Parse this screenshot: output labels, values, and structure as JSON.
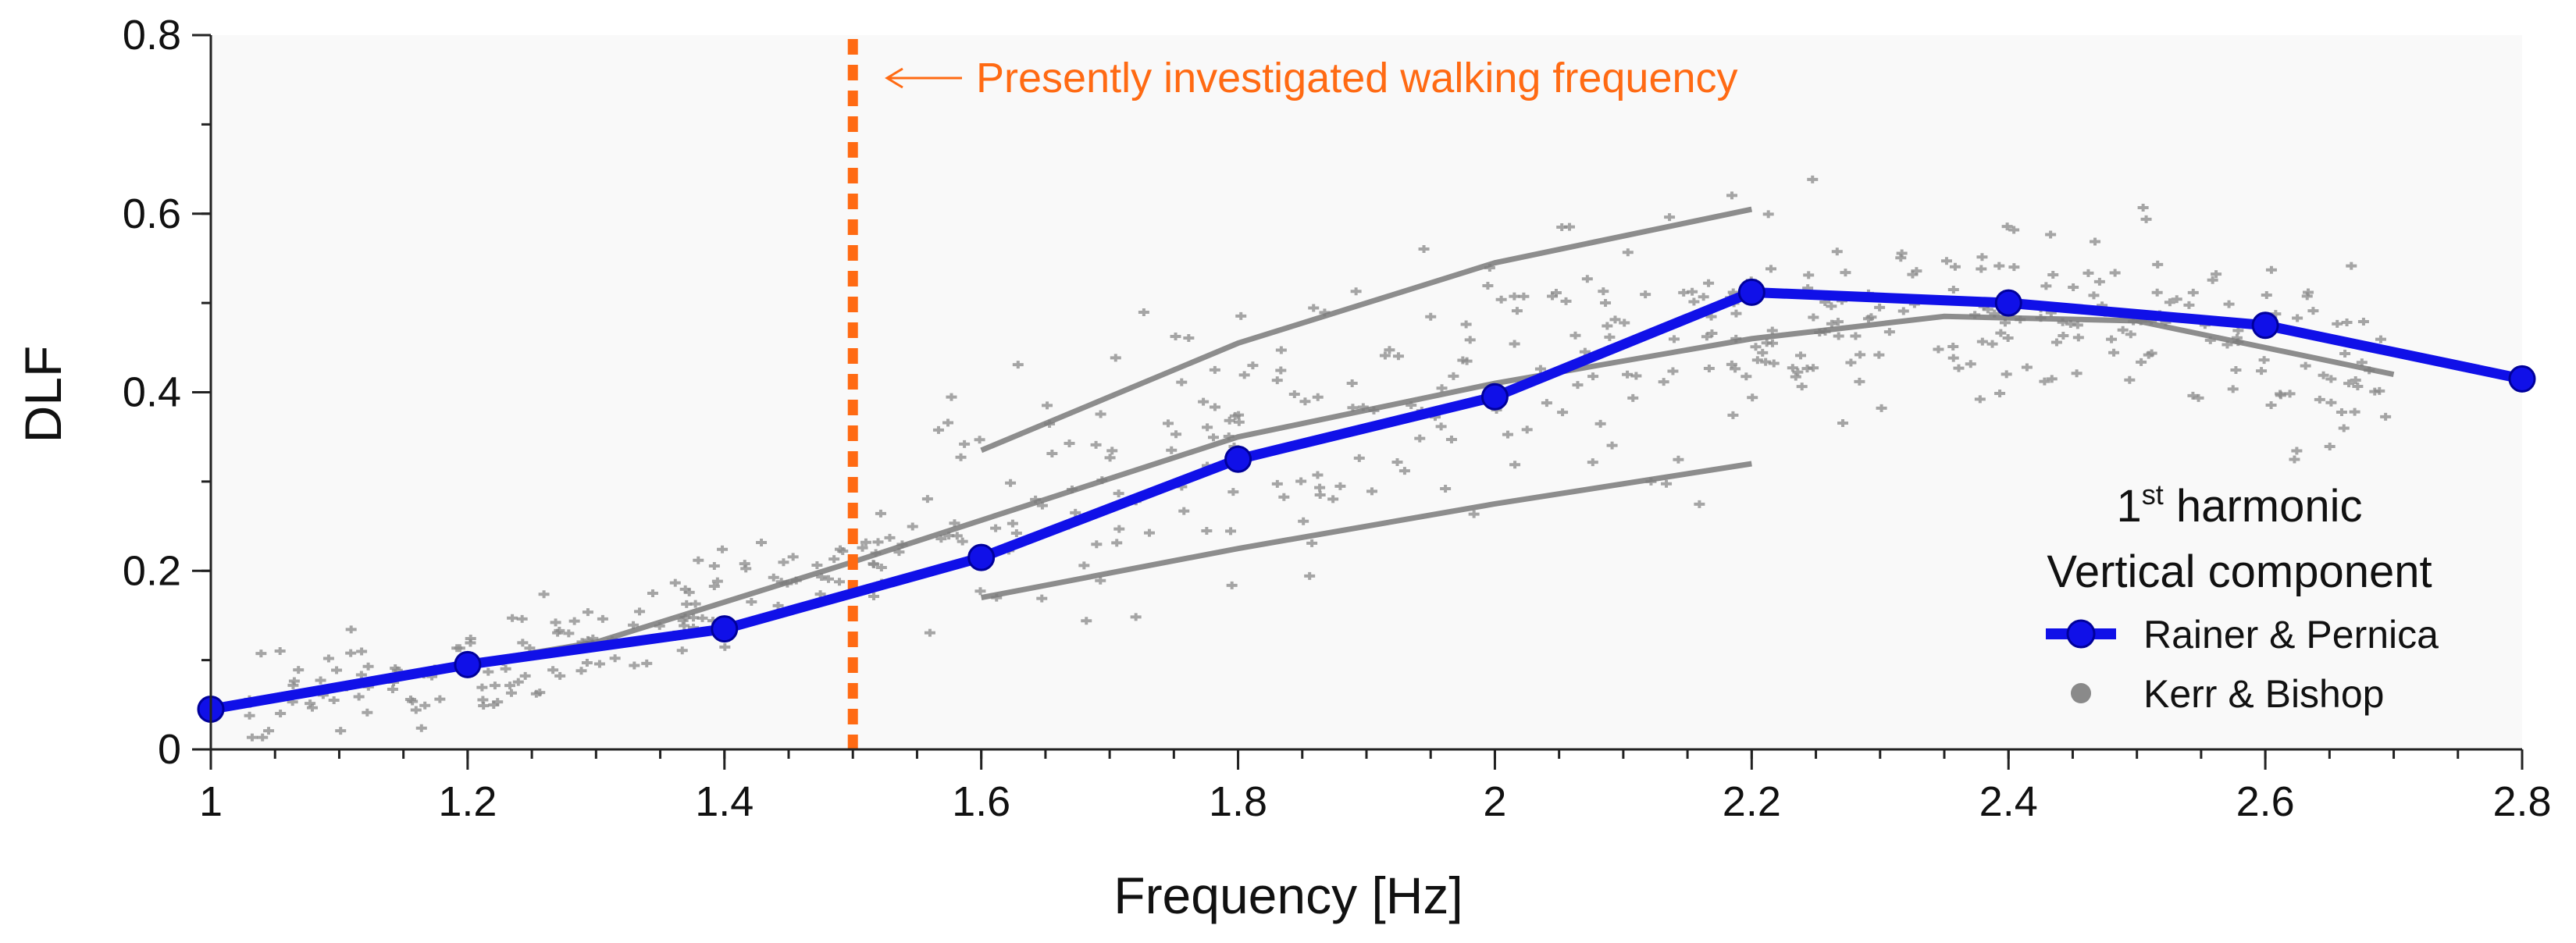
{
  "chart_data": {
    "type": "line",
    "xlabel": "Frequency  [Hz]",
    "ylabel": "DLF",
    "xlim": [
      1.0,
      2.8
    ],
    "ylim": [
      0,
      0.8
    ],
    "x_ticks": [
      1.0,
      1.2,
      1.4,
      1.6,
      1.8,
      2.0,
      2.2,
      2.4,
      2.6,
      2.8
    ],
    "x_tick_labels": [
      "1",
      "1.2",
      "1.4",
      "1.6",
      "1.8",
      "2",
      "2.2",
      "2.4",
      "2.6",
      "2.8"
    ],
    "y_ticks": [
      0,
      0.2,
      0.4,
      0.6,
      0.8
    ],
    "y_tick_labels": [
      "0",
      "0.2",
      "0.4",
      "0.6",
      "0.8"
    ],
    "grid": false,
    "series": [
      {
        "name": "Rainer & Pernica",
        "color": "#1010e8",
        "x": [
          1.0,
          1.2,
          1.4,
          1.6,
          1.8,
          2.0,
          2.2,
          2.4,
          2.6,
          2.8
        ],
        "values": [
          0.045,
          0.095,
          0.135,
          0.215,
          0.325,
          0.395,
          0.512,
          0.5,
          0.475,
          0.415
        ]
      }
    ],
    "scatter": {
      "name": "Kerr & Bishop",
      "color": "#8a8a8a",
      "trend_lines": [
        {
          "name": "upper",
          "x": [
            1.6,
            1.8,
            2.0,
            2.2
          ],
          "values": [
            0.335,
            0.455,
            0.545,
            0.605
          ]
        },
        {
          "name": "middle",
          "x": [
            1.05,
            1.3,
            1.5,
            1.8,
            2.0,
            2.2,
            2.35,
            2.5,
            2.7
          ],
          "values": [
            0.06,
            0.12,
            0.21,
            0.35,
            0.41,
            0.46,
            0.485,
            0.48,
            0.42
          ]
        },
        {
          "name": "lower",
          "x": [
            1.6,
            1.8,
            2.0,
            2.2
          ],
          "values": [
            0.17,
            0.225,
            0.275,
            0.32
          ]
        }
      ]
    },
    "vertical_marker": {
      "x": 1.5,
      "color": "#ff6a13",
      "annotation": "Presently investigated walking frequency"
    },
    "legend": {
      "title_line1_base": "1",
      "title_line1_sup": "st",
      "title_line1_rest": " harmonic",
      "title_line2": "Vertical component",
      "placement": "lower-right",
      "entries": [
        "Rainer & Pernica",
        "Kerr & Bishop"
      ]
    }
  }
}
